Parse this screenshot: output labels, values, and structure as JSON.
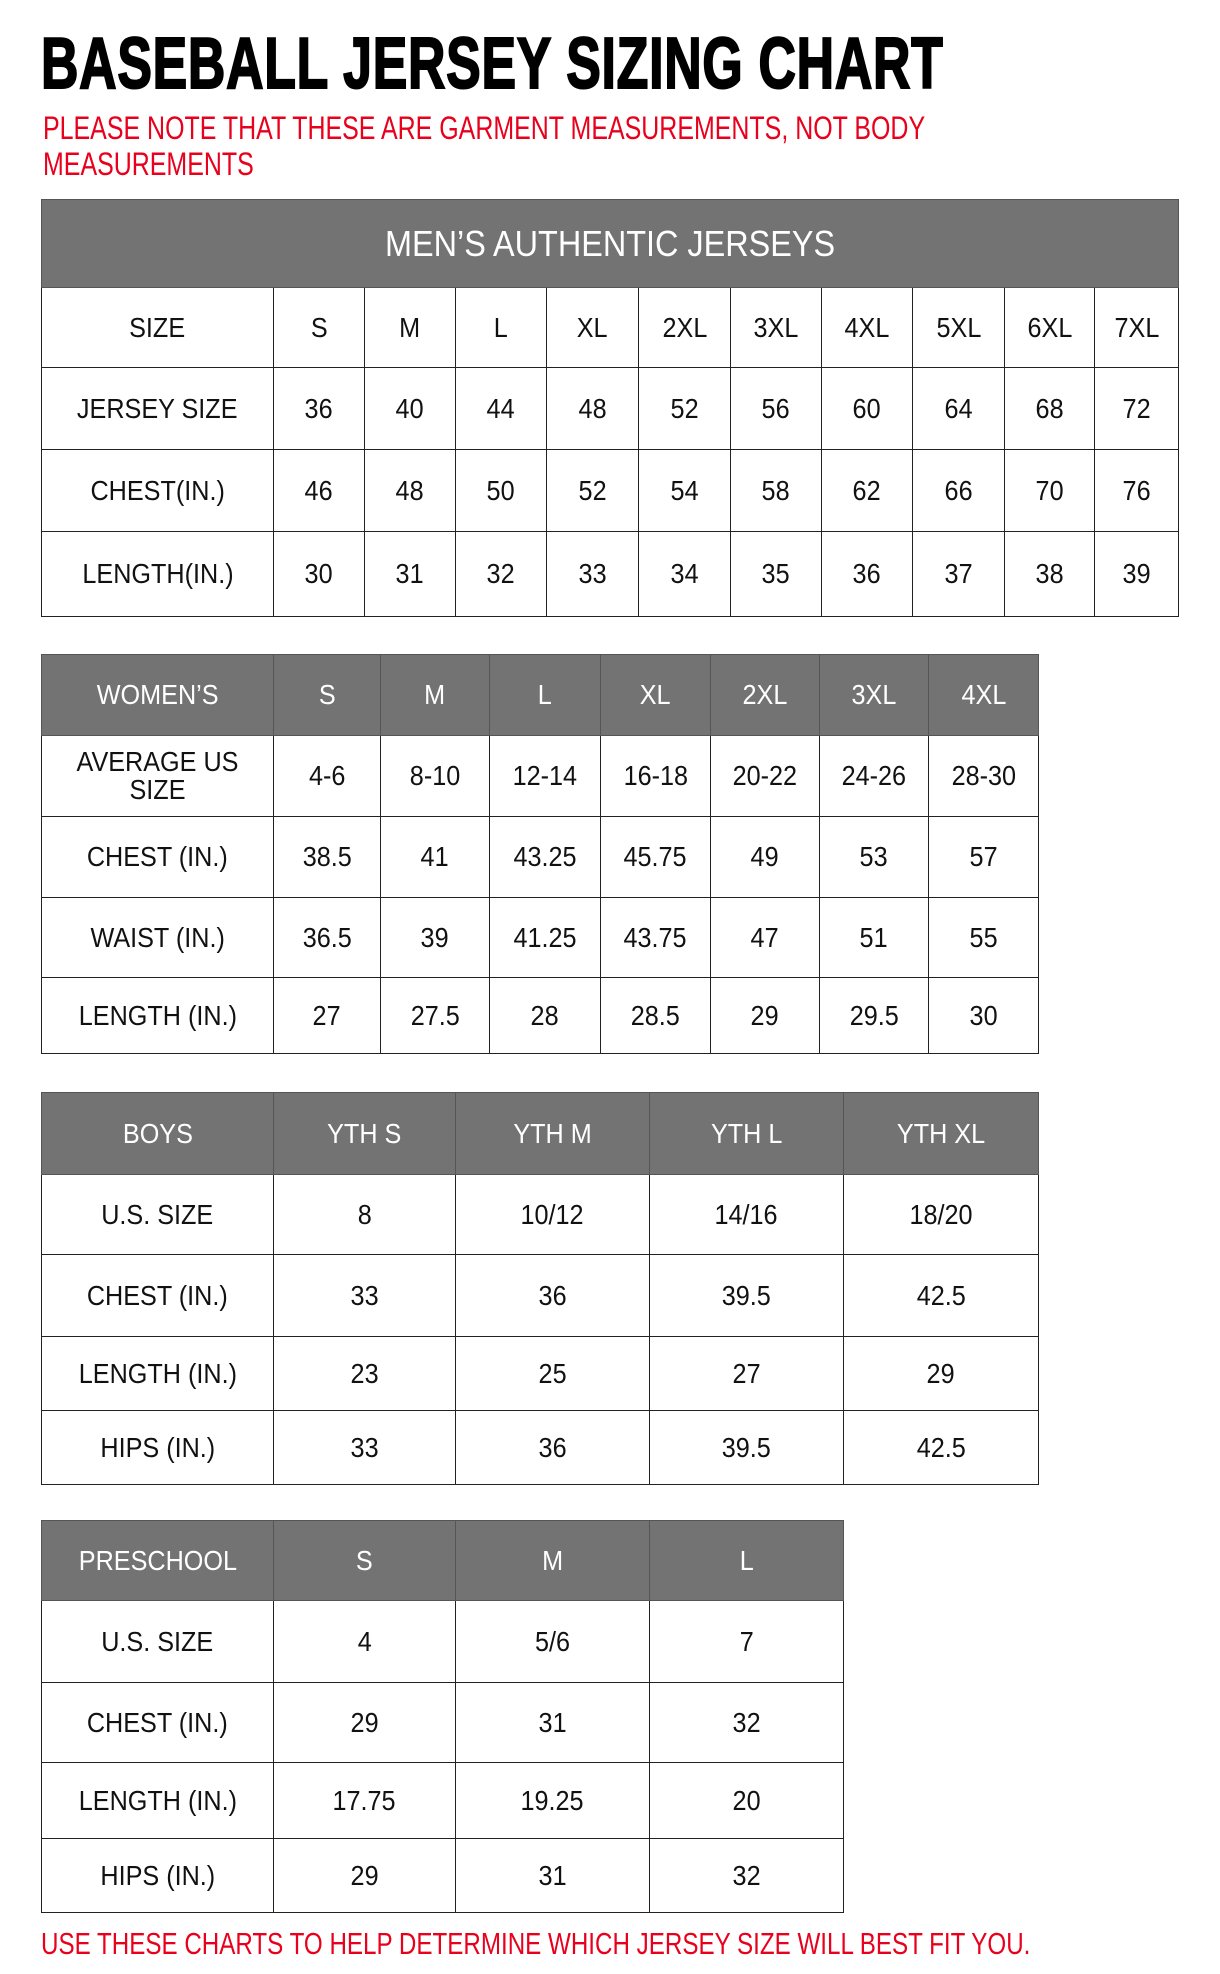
{
  "title": "BASEBALL JERSEY SIZING CHART",
  "note": "PLEASE NOTE THAT THESE ARE GARMENT MEASUREMENTS, NOT BODY MEASUREMENTS",
  "footer": "USE THESE CHARTS TO HELP DETERMINE WHICH JERSEY SIZE WILL BEST FIT YOU.",
  "colors": {
    "header_bg": "#737373",
    "note_red": "#e8001c"
  },
  "tables": [
    {
      "id": "mens",
      "caption": "MEN’S AUTHENTIC JERSEYS",
      "header": [
        "SIZE",
        "S",
        "M",
        "L",
        "XL",
        "2XL",
        "3XL",
        "4XL",
        "5XL",
        "6XL",
        "7XL"
      ],
      "rows": [
        [
          "JERSEY SIZE",
          "36",
          "40",
          "44",
          "48",
          "52",
          "56",
          "60",
          "64",
          "68",
          "72"
        ],
        [
          "CHEST(IN.)",
          "46",
          "48",
          "50",
          "52",
          "54",
          "58",
          "62",
          "66",
          "70",
          "76"
        ],
        [
          "LENGTH(IN.)",
          "30",
          "31",
          "32",
          "33",
          "34",
          "35",
          "36",
          "37",
          "38",
          "39"
        ]
      ]
    },
    {
      "id": "womens",
      "header": [
        "WOMEN’S",
        "S",
        "M",
        "L",
        "XL",
        "2XL",
        "3XL",
        "4XL"
      ],
      "rows": [
        [
          "AVERAGE US SIZE",
          "4-6",
          "8-10",
          "12-14",
          "16-18",
          "20-22",
          "24-26",
          "28-30"
        ],
        [
          "CHEST (IN.)",
          "38.5",
          "41",
          "43.25",
          "45.75",
          "49",
          "53",
          "57"
        ],
        [
          "WAIST (IN.)",
          "36.5",
          "39",
          "41.25",
          "43.75",
          "47",
          "51",
          "55"
        ],
        [
          "LENGTH (IN.)",
          "27",
          "27.5",
          "28",
          "28.5",
          "29",
          "29.5",
          "30"
        ]
      ]
    },
    {
      "id": "boys",
      "header": [
        "BOYS",
        "YTH S",
        "YTH M",
        "YTH L",
        "YTH XL"
      ],
      "rows": [
        [
          "U.S. SIZE",
          "8",
          "10/12",
          "14/16",
          "18/20"
        ],
        [
          "CHEST (IN.)",
          "33",
          "36",
          "39.5",
          "42.5"
        ],
        [
          "LENGTH (IN.)",
          "23",
          "25",
          "27",
          "29"
        ],
        [
          "HIPS (IN.)",
          "33",
          "36",
          "39.5",
          "42.5"
        ]
      ]
    },
    {
      "id": "preschool",
      "header": [
        "PRESCHOOL",
        "S",
        "M",
        "L"
      ],
      "rows": [
        [
          "U.S. SIZE",
          "4",
          "5/6",
          "7"
        ],
        [
          "CHEST (IN.)",
          "29",
          "31",
          "32"
        ],
        [
          "LENGTH (IN.)",
          "17.75",
          "19.25",
          "20"
        ],
        [
          "HIPS (IN.)",
          "29",
          "31",
          "32"
        ]
      ]
    }
  ]
}
